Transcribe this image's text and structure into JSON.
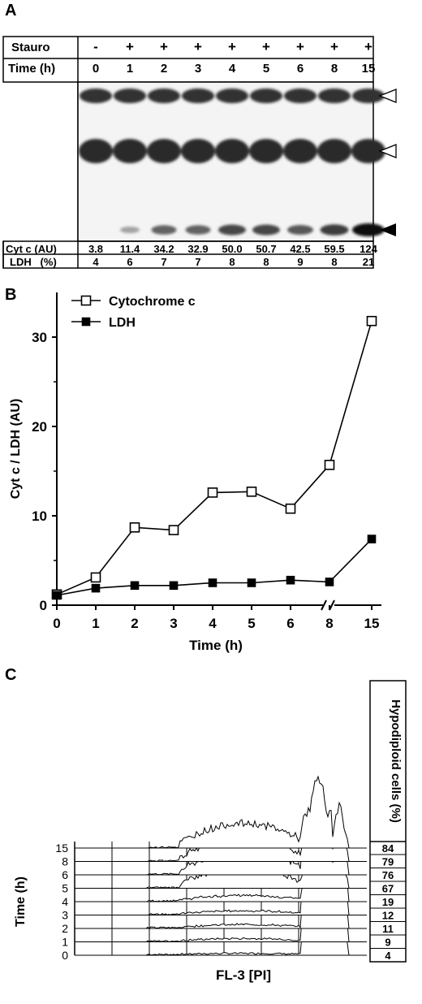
{
  "panelA": {
    "letter": "A",
    "stauro_label": "Stauro",
    "time_label": "Time (h)",
    "stauro_values": [
      "-",
      "+",
      "+",
      "+",
      "+",
      "+",
      "+",
      "+",
      "+"
    ],
    "time_values": [
      "0",
      "1",
      "2",
      "3",
      "4",
      "5",
      "6",
      "8",
      "15"
    ],
    "cytc_label": "Cyt c (AU)",
    "cytc_values": [
      "3.8",
      "11.4",
      "34.2",
      "32.9",
      "50.0",
      "50.7",
      "42.5",
      "59.5",
      "124"
    ],
    "ldh_label": "LDH   (%)",
    "ldh_values": [
      "4",
      "6",
      "7",
      "7",
      "8",
      "8",
      "9",
      "8",
      "21"
    ],
    "band_intensity": [
      0.0,
      0.2,
      0.55,
      0.55,
      0.7,
      0.7,
      0.6,
      0.75,
      1.0
    ]
  },
  "panelB": {
    "letter": "B",
    "chart_data": {
      "type": "line",
      "categories": [
        "0",
        "1",
        "2",
        "3",
        "4",
        "5",
        "6",
        "8",
        "15"
      ],
      "series": [
        {
          "name": "Cytochrome c",
          "marker": "open-square",
          "values": [
            1.2,
            3.1,
            8.7,
            8.4,
            12.6,
            12.7,
            10.8,
            15.7,
            31.8
          ]
        },
        {
          "name": "LDH",
          "marker": "filled-square",
          "values": [
            1.1,
            1.9,
            2.2,
            2.2,
            2.5,
            2.5,
            2.8,
            2.6,
            7.4
          ]
        }
      ],
      "xlabel": "Time (h)",
      "ylabel": "Cyt c / LDH (AU)",
      "ylim": [
        0,
        35
      ],
      "yticks": [
        "0",
        "10",
        "20",
        "30"
      ],
      "axis_break_between": [
        "8",
        "15"
      ],
      "legend": "top-left"
    }
  },
  "panelC": {
    "letter": "C",
    "xlabel": "FL-3  [PI]",
    "ylabel": "Time (h)",
    "right_header": "Hypodiploid cells (%)",
    "time_values": [
      "15",
      "8",
      "6",
      "5",
      "4",
      "3",
      "2",
      "1",
      "0"
    ],
    "hypodiploid_values": [
      "84",
      "79",
      "76",
      "67",
      "19",
      "12",
      "11",
      "9",
      "4"
    ]
  }
}
